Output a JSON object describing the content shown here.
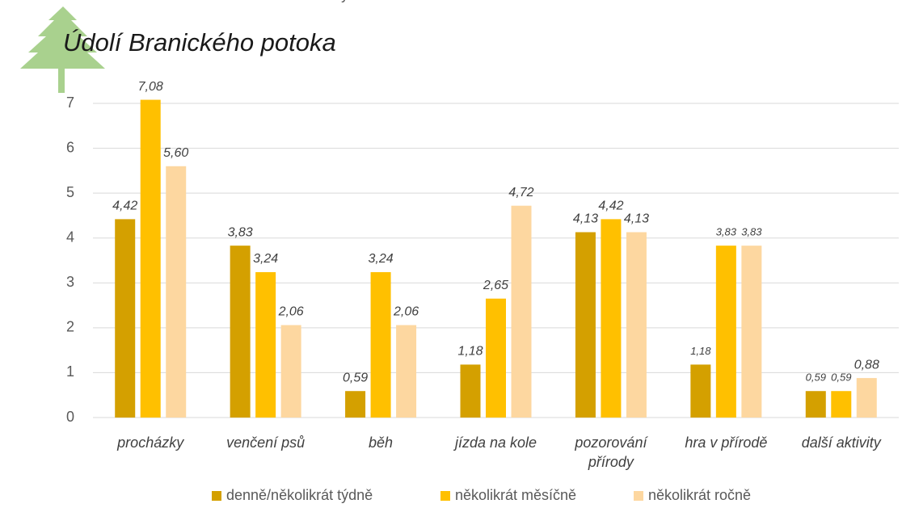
{
  "chart_data": {
    "type": "bar",
    "title": "Údolí Branického potoka",
    "categories": [
      "procházky",
      "venčení psů",
      "běh",
      "jízda na kole",
      "pozorování přírody",
      "hra v přírodě",
      "další aktivity"
    ],
    "series": [
      {
        "name": "denně/několikrát týdně",
        "color": "#d4a000",
        "values": [
          4.42,
          3.83,
          0.59,
          1.18,
          4.13,
          1.18,
          0.59
        ],
        "value_labels": [
          "4,42",
          "3,83",
          "0,59",
          "1,18",
          "4,13",
          "1,18",
          "0,59"
        ]
      },
      {
        "name": "několikrát měsíčně",
        "color": "#ffc000",
        "values": [
          7.08,
          3.24,
          3.24,
          2.65,
          4.42,
          3.83,
          0.59
        ],
        "value_labels": [
          "7,08",
          "3,24",
          "3,24",
          "2,65",
          "4,42",
          "3,83",
          "0,59"
        ]
      },
      {
        "name": "několikrát ročně",
        "color": "#fdd7a0",
        "values": [
          5.6,
          2.06,
          2.06,
          4.72,
          4.13,
          3.83,
          0.88
        ],
        "value_labels": [
          "5,60",
          "2,06",
          "2,06",
          "4,72",
          "4,13",
          "3,83",
          "0,88"
        ]
      }
    ],
    "ylim": [
      0,
      7
    ],
    "yticks": [
      0,
      1,
      2,
      3,
      4,
      5,
      6,
      7
    ],
    "grid": true,
    "legend": "bottom"
  }
}
